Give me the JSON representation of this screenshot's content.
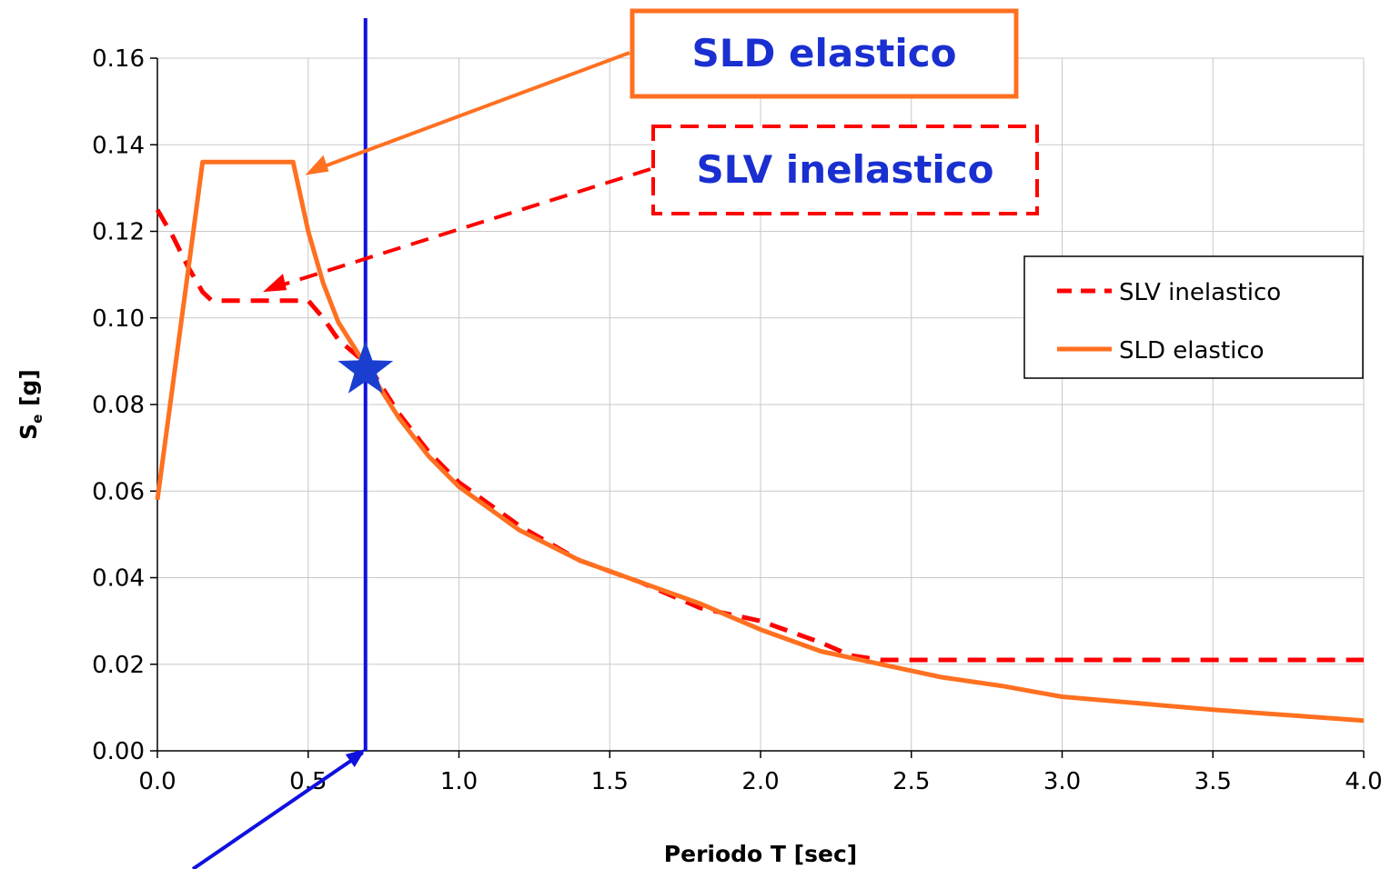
{
  "chart_data": {
    "type": "line",
    "xlabel": "Periodo T [sec]",
    "ylabel_main": "S",
    "ylabel_sub": "e",
    "ylabel_unit": " [g]",
    "xlim": [
      0,
      4
    ],
    "ylim": [
      0,
      0.16
    ],
    "xticks": [
      "0.0",
      "0.5",
      "1.0",
      "1.5",
      "2.0",
      "2.5",
      "3.0",
      "3.5",
      "4.0"
    ],
    "yticks": [
      "0.00",
      "0.02",
      "0.04",
      "0.06",
      "0.08",
      "0.10",
      "0.12",
      "0.14",
      "0.16"
    ],
    "grid": true,
    "legend_position": "right",
    "series": [
      {
        "name": "SLV inelastico",
        "style": "dashed",
        "color": "#ff0000",
        "points": [
          [
            0.0,
            0.125
          ],
          [
            0.05,
            0.119
          ],
          [
            0.1,
            0.112
          ],
          [
            0.15,
            0.106
          ],
          [
            0.18,
            0.104
          ],
          [
            0.3,
            0.104
          ],
          [
            0.4,
            0.104
          ],
          [
            0.5,
            0.104
          ],
          [
            0.55,
            0.1
          ],
          [
            0.6,
            0.095
          ],
          [
            0.7,
            0.089
          ],
          [
            0.8,
            0.078
          ],
          [
            0.9,
            0.069
          ],
          [
            1.0,
            0.062
          ],
          [
            1.2,
            0.052
          ],
          [
            1.4,
            0.044
          ],
          [
            1.6,
            0.039
          ],
          [
            1.8,
            0.033
          ],
          [
            2.0,
            0.03
          ],
          [
            2.2,
            0.025
          ],
          [
            2.3,
            0.022
          ],
          [
            2.4,
            0.021
          ],
          [
            3.0,
            0.021
          ],
          [
            4.0,
            0.021
          ]
        ]
      },
      {
        "name": "SLD elastico",
        "style": "solid",
        "color": "#ff7020",
        "points": [
          [
            0.0,
            0.058
          ],
          [
            0.05,
            0.084
          ],
          [
            0.1,
            0.11
          ],
          [
            0.15,
            0.136
          ],
          [
            0.3,
            0.136
          ],
          [
            0.45,
            0.136
          ],
          [
            0.5,
            0.12
          ],
          [
            0.55,
            0.108
          ],
          [
            0.6,
            0.099
          ],
          [
            0.7,
            0.088
          ],
          [
            0.8,
            0.077
          ],
          [
            0.9,
            0.068
          ],
          [
            1.0,
            0.061
          ],
          [
            1.2,
            0.051
          ],
          [
            1.4,
            0.044
          ],
          [
            1.6,
            0.039
          ],
          [
            1.8,
            0.034
          ],
          [
            1.9,
            0.031
          ],
          [
            2.0,
            0.028
          ],
          [
            2.2,
            0.023
          ],
          [
            2.4,
            0.02
          ],
          [
            2.6,
            0.017
          ],
          [
            2.8,
            0.015
          ],
          [
            3.0,
            0.0125
          ],
          [
            3.5,
            0.0095
          ],
          [
            4.0,
            0.007
          ]
        ]
      }
    ],
    "marker_point": {
      "x": 0.69,
      "y": 0.088
    },
    "vertical_line_x": 0.69,
    "callouts": [
      {
        "text": "SLD elastico",
        "border": "solid",
        "border_color": "#ff7020",
        "text_color": "#1a2fd0",
        "target": {
          "x": 0.49,
          "y": 0.133
        }
      },
      {
        "text": "SLV inelastico",
        "border": "dashed",
        "border_color": "#ff0000",
        "text_color": "#1a2fd0",
        "target": {
          "x": 0.35,
          "y": 0.106
        }
      }
    ]
  },
  "colors": {
    "accent_blue": "#1010e0",
    "star_blue": "#1a3fd0",
    "grid": "#c8c8c8"
  }
}
